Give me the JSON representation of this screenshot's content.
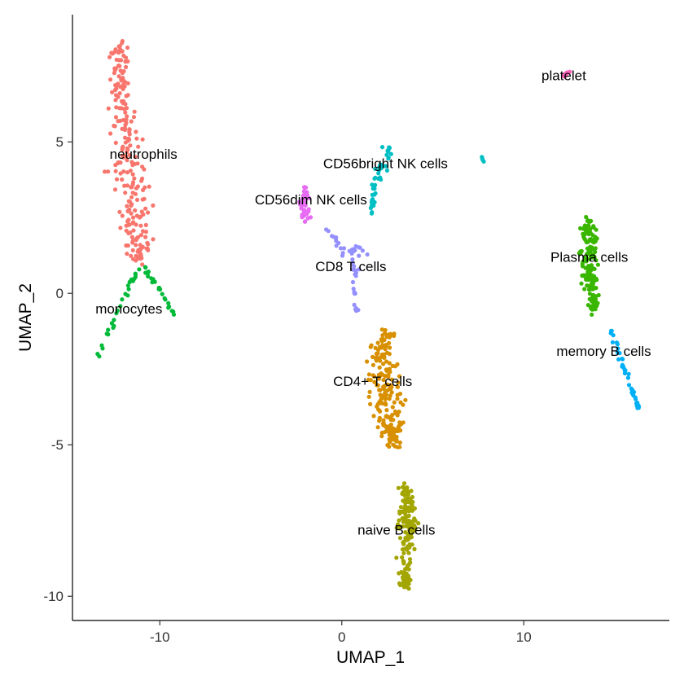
{
  "chart_data": {
    "type": "scatter",
    "title": "",
    "xlabel": "UMAP_1",
    "ylabel": "UMAP_2",
    "xlim": [
      -14.8,
      18
    ],
    "ylim": [
      -10.8,
      9.2
    ],
    "x_ticks": [
      -10,
      0,
      10
    ],
    "x_tick_labels": [
      "-10",
      "0",
      "10"
    ],
    "y_ticks": [
      -10,
      -5,
      0,
      5
    ],
    "y_tick_labels": [
      "-10",
      "-5",
      "0",
      "5"
    ],
    "grid": false,
    "legend": "none",
    "clusters": [
      {
        "label": "neutrophils",
        "label_x": -10.9,
        "label_y": 4.6,
        "color": "#F8766D",
        "n": 240,
        "spine": [
          [
            -12.3,
            8.2
          ],
          [
            -12.2,
            7.0
          ],
          [
            -11.9,
            5.6
          ],
          [
            -11.5,
            4.0
          ],
          [
            -11.4,
            2.4
          ],
          [
            -11.0,
            1.0
          ]
        ],
        "spread": [
          0.45,
          0.45,
          0.7,
          0.85,
          0.8,
          0.5
        ]
      },
      {
        "label": "monocytes",
        "label_x": -11.7,
        "label_y": -0.5,
        "color": "#00BA38",
        "n": 55,
        "spine": [
          [
            -13.4,
            -2.1
          ],
          [
            -12.6,
            -1.0
          ],
          [
            -11.7,
            0.3
          ],
          [
            -11.0,
            0.9
          ],
          [
            -10.2,
            0.3
          ],
          [
            -9.2,
            -0.7
          ]
        ],
        "spread": [
          0.08,
          0.1,
          0.12,
          0.15,
          0.1,
          0.06
        ]
      },
      {
        "label": "CD56bright NK cells",
        "label_x": 2.4,
        "label_y": 4.3,
        "color": "#00BFC4",
        "n": 45,
        "spine": [
          [
            1.6,
            2.6
          ],
          [
            1.8,
            3.5
          ],
          [
            2.2,
            4.2
          ],
          [
            2.5,
            4.8
          ]
        ],
        "spread": [
          0.1,
          0.2,
          0.35,
          0.3
        ],
        "extra_points": [
          [
            7.7,
            4.5
          ],
          [
            7.75,
            4.4
          ],
          [
            7.8,
            4.35
          ],
          [
            7.72,
            4.45
          ]
        ]
      },
      {
        "label": "CD56dim NK cells",
        "label_x": -1.7,
        "label_y": 3.1,
        "color": "#E76BF3",
        "n": 40,
        "spine": [
          [
            -2.0,
            3.5
          ],
          [
            -2.0,
            2.9
          ],
          [
            -2.0,
            2.3
          ]
        ],
        "spread": [
          0.2,
          0.25,
          0.2
        ]
      },
      {
        "label": "CD8 T cells",
        "label_x": 0.5,
        "label_y": 0.9,
        "color": "#9590FF",
        "n": 45,
        "spine": [
          [
            -0.8,
            2.1
          ],
          [
            0.2,
            1.3
          ],
          [
            1.0,
            1.5
          ],
          [
            0.6,
            0.4
          ],
          [
            0.8,
            -0.6
          ]
        ],
        "spread": [
          0.1,
          0.3,
          0.3,
          0.25,
          0.1
        ]
      },
      {
        "label": "CD4+ T cells",
        "label_x": 1.7,
        "label_y": -2.9,
        "color": "#D89000",
        "n": 210,
        "spine": [
          [
            2.6,
            -1.3
          ],
          [
            2.0,
            -2.2
          ],
          [
            2.3,
            -3.1
          ],
          [
            2.6,
            -4.0
          ],
          [
            2.8,
            -5.0
          ]
        ],
        "spread": [
          0.4,
          0.8,
          0.85,
          0.65,
          0.35
        ]
      },
      {
        "label": "naive B cells",
        "label_x": 3.0,
        "label_y": -7.8,
        "color": "#A3A500",
        "n": 160,
        "spine": [
          [
            3.5,
            -6.3
          ],
          [
            3.6,
            -7.2
          ],
          [
            3.6,
            -8.0
          ],
          [
            3.5,
            -9.0
          ],
          [
            3.5,
            -9.7
          ]
        ],
        "spread": [
          0.3,
          0.5,
          0.5,
          0.35,
          0.2
        ]
      },
      {
        "label": "Plasma cells",
        "label_x": 13.6,
        "label_y": 1.2,
        "color": "#39B600",
        "n": 160,
        "spine": [
          [
            13.6,
            2.4
          ],
          [
            13.6,
            1.5
          ],
          [
            13.6,
            0.5
          ],
          [
            13.9,
            -0.6
          ]
        ],
        "spread": [
          0.3,
          0.45,
          0.4,
          0.25
        ]
      },
      {
        "label": "memory  B cells",
        "label_x": 14.4,
        "label_y": -1.9,
        "color": "#00B0F6",
        "n": 45,
        "spine": [
          [
            14.8,
            -1.1
          ],
          [
            15.2,
            -2.0
          ],
          [
            15.8,
            -2.9
          ],
          [
            16.3,
            -3.8
          ]
        ],
        "spread": [
          0.12,
          0.15,
          0.12,
          0.08
        ]
      },
      {
        "label": "platelet",
        "label_x": 12.2,
        "label_y": 7.2,
        "color": "#FF62BC",
        "n": 8,
        "spine": [
          [
            12.2,
            7.15
          ],
          [
            12.5,
            7.35
          ]
        ],
        "spread": [
          0.05,
          0.05
        ]
      }
    ]
  }
}
